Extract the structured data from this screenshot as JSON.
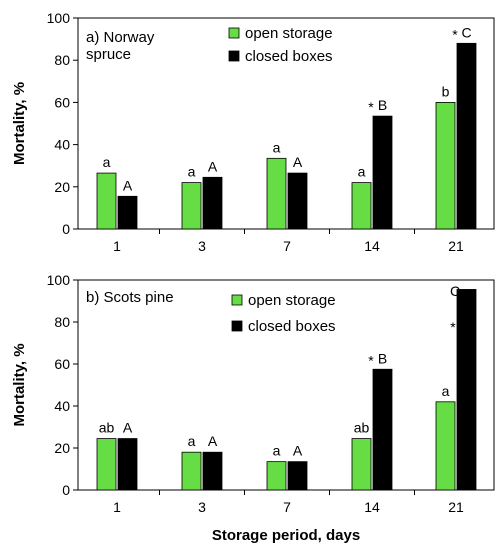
{
  "chart_data": [
    {
      "type": "bar",
      "title": "a) Norway\nspruce",
      "categories": [
        "1",
        "3",
        "7",
        "14",
        "21"
      ],
      "series": [
        {
          "name": "open storage",
          "color": "#66dd44",
          "values": [
            26.5,
            22,
            33.5,
            22,
            60
          ],
          "labels": [
            "a",
            "a",
            "a",
            "a",
            "b"
          ],
          "stars": [
            "",
            "",
            "",
            "",
            ""
          ]
        },
        {
          "name": "closed boxes",
          "color": "#000000",
          "values": [
            15.5,
            24.5,
            26.5,
            53.5,
            88
          ],
          "labels": [
            "A",
            "A",
            "A",
            "B",
            "C"
          ],
          "stars": [
            "",
            "",
            "",
            "*",
            "*"
          ]
        }
      ],
      "xlabel": "",
      "ylabel": "Mortality, %",
      "ylim": [
        0,
        100
      ],
      "yticks": [
        "0",
        "20",
        "40",
        "60",
        "80",
        "100"
      ],
      "grid": false,
      "legend": "top-center"
    },
    {
      "type": "bar",
      "title": "b) Scots pine",
      "categories": [
        "1",
        "3",
        "7",
        "14",
        "21"
      ],
      "series": [
        {
          "name": "open storage",
          "color": "#66dd44",
          "values": [
            24.5,
            18,
            13.5,
            24.5,
            42
          ],
          "labels": [
            "ab",
            "a",
            "a",
            "ab",
            "a"
          ],
          "stars": [
            "",
            "",
            "",
            "",
            ""
          ]
        },
        {
          "name": "closed boxes",
          "color": "#000000",
          "values": [
            24.5,
            18,
            13.5,
            57.5,
            95.5
          ],
          "labels": [
            "A",
            "A",
            "A",
            "B",
            "C"
          ],
          "stars": [
            "",
            "",
            "",
            "*",
            "*"
          ]
        }
      ],
      "xlabel": "Storage period, days",
      "ylabel": "Mortality, %",
      "ylim": [
        0,
        100
      ],
      "yticks": [
        "0",
        "20",
        "40",
        "60",
        "80",
        "100"
      ],
      "grid": false,
      "legend": "top-center"
    }
  ]
}
